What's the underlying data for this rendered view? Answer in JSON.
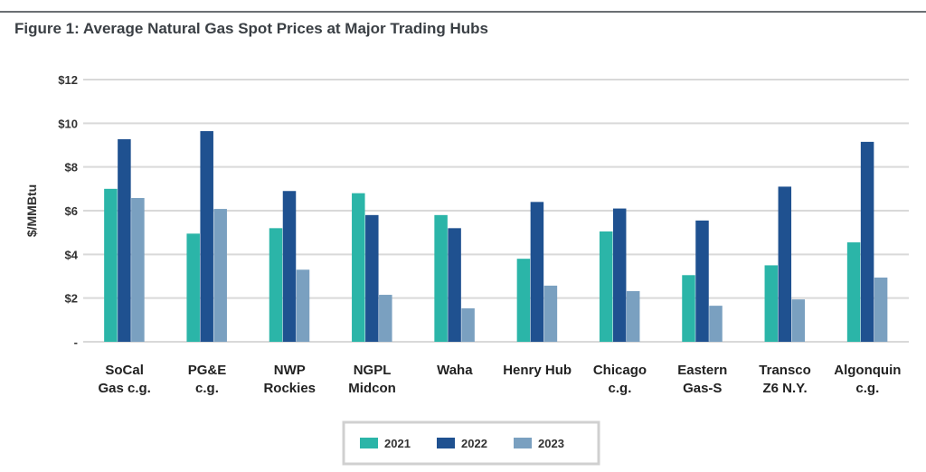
{
  "chart_data": {
    "type": "bar",
    "title": "Figure 1: Average Natural Gas Spot Prices at Major Trading Hubs",
    "xlabel": "",
    "ylabel": "$/MMBtu",
    "ylim": [
      0,
      12
    ],
    "yticks": [
      {
        "value": 0,
        "label": "-"
      },
      {
        "value": 2,
        "label": "$2"
      },
      {
        "value": 4,
        "label": "$4"
      },
      {
        "value": 6,
        "label": "$6"
      },
      {
        "value": 8,
        "label": "$8"
      },
      {
        "value": 10,
        "label": "$10"
      },
      {
        "value": 12,
        "label": "$12"
      }
    ],
    "grid": true,
    "legend": "bottom",
    "categories": [
      [
        "SoCal",
        "Gas c.g."
      ],
      [
        "PG&E",
        "c.g."
      ],
      [
        "NWP",
        "Rockies"
      ],
      [
        "NGPL",
        "Midcon"
      ],
      [
        "Waha"
      ],
      [
        "Henry Hub"
      ],
      [
        "Chicago",
        "c.g."
      ],
      [
        "Eastern",
        "Gas-S"
      ],
      [
        "Transco",
        "Z6 N.Y."
      ],
      [
        "Algonquin",
        "c.g."
      ]
    ],
    "series": [
      {
        "name": "2021",
        "color": "#2bb5a8",
        "values": [
          7.0,
          4.95,
          5.2,
          6.8,
          5.8,
          3.8,
          5.05,
          3.05,
          3.5,
          4.55
        ]
      },
      {
        "name": "2022",
        "color": "#1f5190",
        "values": [
          9.27,
          9.64,
          6.9,
          5.8,
          5.2,
          6.4,
          6.1,
          5.55,
          7.1,
          9.15
        ]
      },
      {
        "name": "2023",
        "color": "#7aa0c0",
        "values": [
          6.58,
          6.08,
          3.3,
          2.15,
          1.53,
          2.57,
          2.32,
          1.65,
          1.94,
          2.94
        ]
      }
    ]
  }
}
